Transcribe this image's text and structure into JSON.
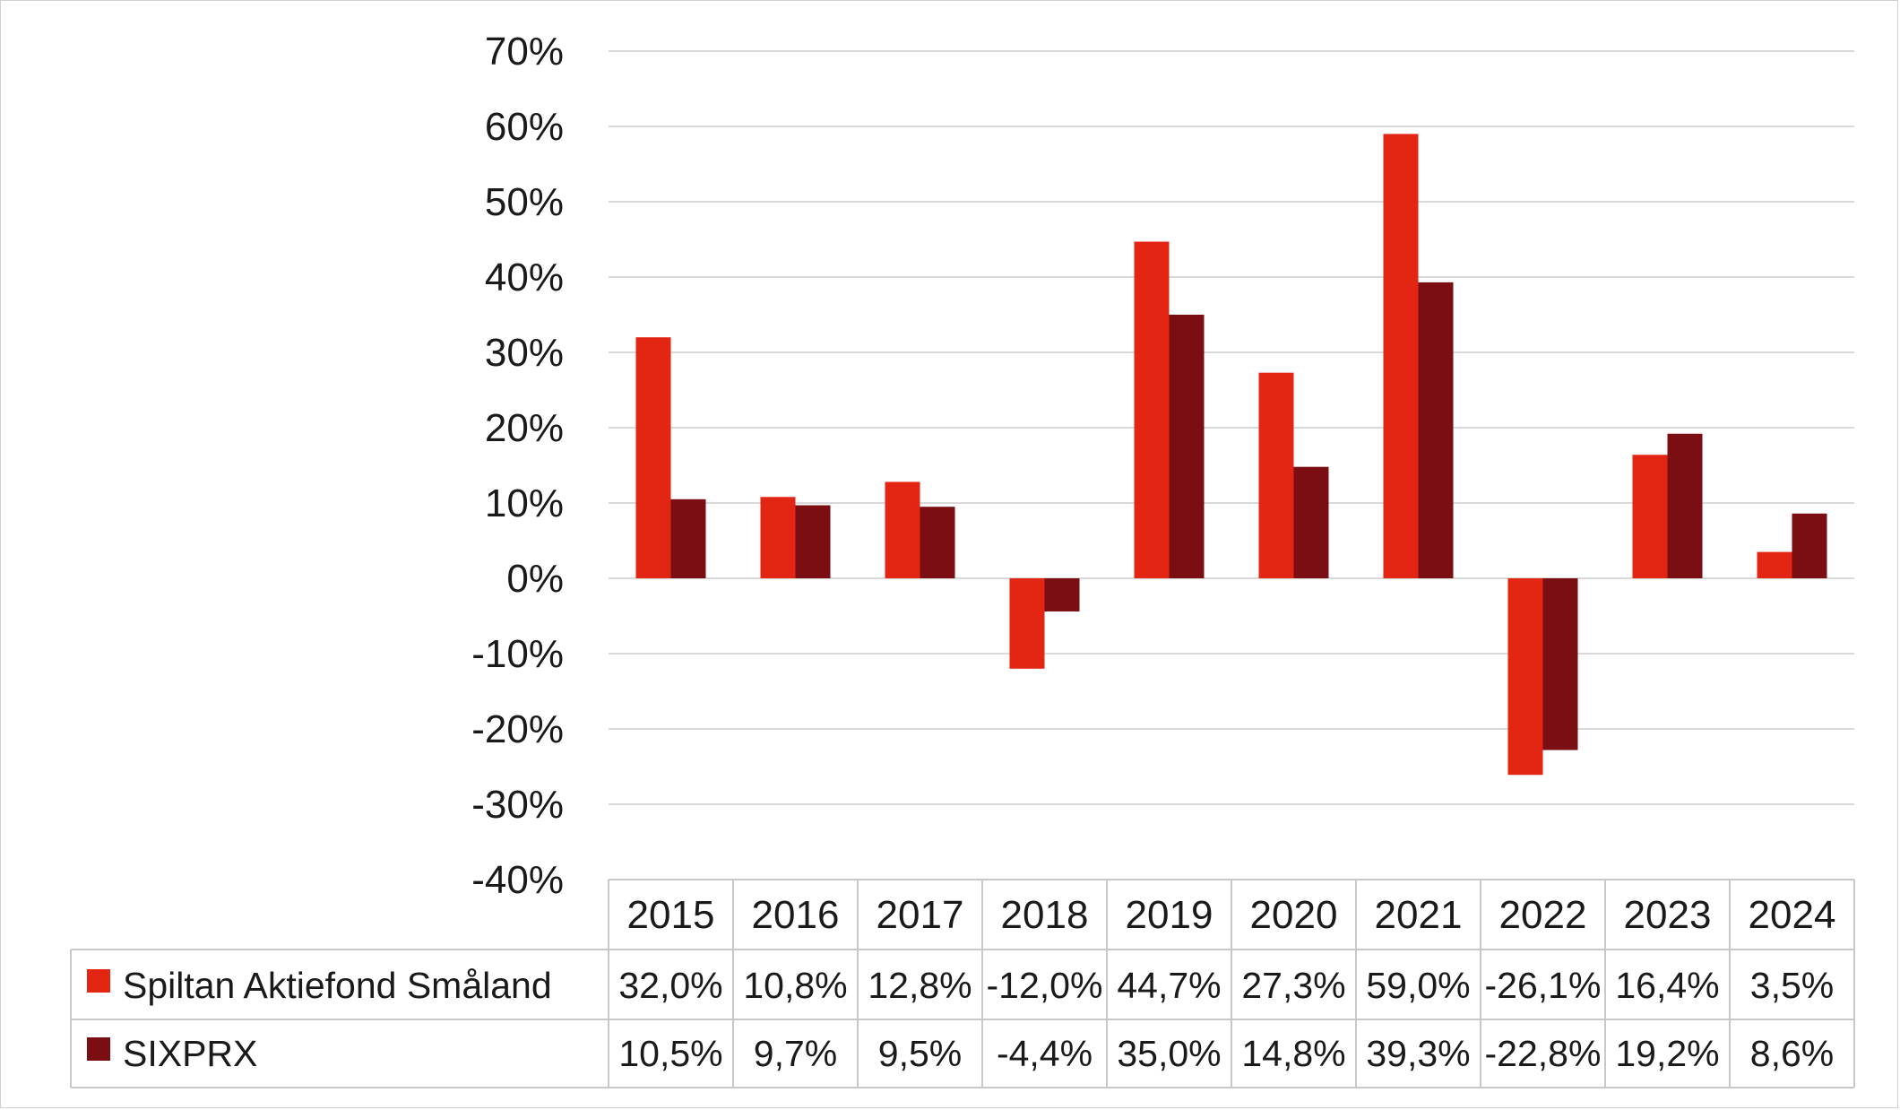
{
  "chart_data": {
    "type": "bar",
    "title": "",
    "xlabel": "",
    "ylabel": "",
    "categories": [
      "2015",
      "2016",
      "2017",
      "2018",
      "2019",
      "2020",
      "2021",
      "2022",
      "2023",
      "2024"
    ],
    "series": [
      {
        "name": "Spiltan Aktiefond Småland",
        "color": "#e32613",
        "values": [
          32.0,
          10.8,
          12.8,
          -12.0,
          44.7,
          27.3,
          59.0,
          -26.1,
          16.4,
          3.5
        ],
        "labels": [
          "32,0%",
          "10,8%",
          "12,8%",
          "-12,0%",
          "44,7%",
          "27,3%",
          "59,0%",
          "-26,1%",
          "16,4%",
          "3,5%"
        ]
      },
      {
        "name": "SIXPRX",
        "color": "#7b0e12",
        "values": [
          10.5,
          9.7,
          9.5,
          -4.4,
          35.0,
          14.8,
          39.3,
          -22.8,
          19.2,
          8.6
        ],
        "labels": [
          "10,5%",
          "9,7%",
          "9,5%",
          "-4,4%",
          "35,0%",
          "14,8%",
          "39,3%",
          "-22,8%",
          "19,2%",
          "8,6%"
        ]
      }
    ],
    "ylim": [
      -40,
      70
    ],
    "yticks": [
      70,
      60,
      50,
      40,
      30,
      20,
      10,
      0,
      -10,
      -20,
      -30,
      -40
    ],
    "ytick_labels": [
      "70%",
      "60%",
      "50%",
      "40%",
      "30%",
      "20%",
      "10%",
      "0%",
      "-10%",
      "-20%",
      "-30%",
      "-40%"
    ],
    "grid": true,
    "legend": "data-table"
  }
}
